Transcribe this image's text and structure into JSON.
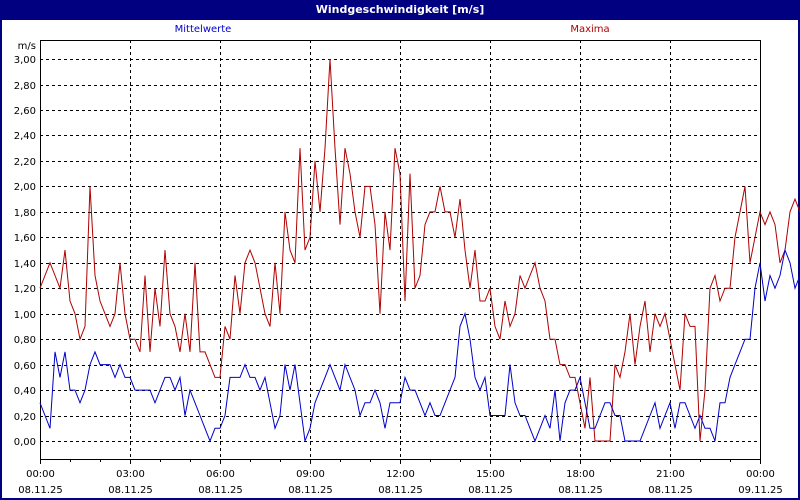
{
  "window": {
    "title": "Windgeschwindigkeit [m/s]"
  },
  "legend": {
    "mean_label": "Mittelwerte",
    "max_label": "Maxima"
  },
  "colors": {
    "title_bg": "#000080",
    "mean": "#0000cc",
    "max": "#b00000",
    "grid": "#000000"
  },
  "chart_data": {
    "type": "line",
    "title": "Windgeschwindigkeit [m/s]",
    "ylabel": "m/s",
    "xlabel": "",
    "ylim": [
      -0.14,
      3.14
    ],
    "grid": true,
    "legend_position": "top",
    "y_ticks": [
      "0,00",
      "0,20",
      "0,40",
      "0,60",
      "0,80",
      "1,00",
      "1,20",
      "1,40",
      "1,60",
      "1,80",
      "2,00",
      "2,20",
      "2,40",
      "2,60",
      "2,80",
      "3,00"
    ],
    "x_ticks": [
      {
        "time": "00:00",
        "date": "08.11.25"
      },
      {
        "time": "03:00",
        "date": "08.11.25"
      },
      {
        "time": "06:00",
        "date": "08.11.25"
      },
      {
        "time": "09:00",
        "date": "08.11.25"
      },
      {
        "time": "12:00",
        "date": "08.11.25"
      },
      {
        "time": "15:00",
        "date": "08.11.25"
      },
      {
        "time": "18:00",
        "date": "08.11.25"
      },
      {
        "time": "21:00",
        "date": "08.11.25"
      },
      {
        "time": "00:00",
        "date": "09.11.25"
      }
    ],
    "x_interval_minutes": 10,
    "series": [
      {
        "name": "Mittelwerte",
        "color": "#0000cc",
        "values": [
          0.3,
          0.2,
          0.1,
          0.7,
          0.5,
          0.7,
          0.4,
          0.4,
          0.3,
          0.4,
          0.6,
          0.7,
          0.6,
          0.6,
          0.6,
          0.5,
          0.6,
          0.5,
          0.5,
          0.4,
          0.4,
          0.4,
          0.4,
          0.3,
          0.4,
          0.5,
          0.5,
          0.4,
          0.5,
          0.2,
          0.4,
          0.3,
          0.2,
          0.1,
          0.0,
          0.1,
          0.1,
          0.2,
          0.5,
          0.5,
          0.5,
          0.6,
          0.5,
          0.5,
          0.4,
          0.5,
          0.3,
          0.1,
          0.2,
          0.6,
          0.4,
          0.6,
          0.3,
          0.0,
          0.1,
          0.3,
          0.4,
          0.5,
          0.6,
          0.5,
          0.4,
          0.6,
          0.5,
          0.4,
          0.2,
          0.3,
          0.3,
          0.4,
          0.3,
          0.1,
          0.3,
          0.3,
          0.3,
          0.5,
          0.4,
          0.4,
          0.3,
          0.2,
          0.3,
          0.2,
          0.2,
          0.3,
          0.4,
          0.5,
          0.9,
          1.0,
          0.8,
          0.5,
          0.4,
          0.5,
          0.2,
          0.2,
          0.2,
          0.2,
          0.6,
          0.3,
          0.2,
          0.2,
          0.1,
          0.0,
          0.1,
          0.2,
          0.1,
          0.4,
          0.0,
          0.3,
          0.4,
          0.4,
          0.5,
          0.3,
          0.1,
          0.1,
          0.2,
          0.3,
          0.3,
          0.2,
          0.2,
          0.0,
          0.0,
          0.0,
          0.0,
          0.1,
          0.2,
          0.3,
          0.1,
          0.2,
          0.3,
          0.1,
          0.3,
          0.3,
          0.2,
          0.1,
          0.2,
          0.1,
          0.1,
          0.0,
          0.3,
          0.3,
          0.5,
          0.6,
          0.7,
          0.8,
          0.8,
          1.2,
          1.4,
          1.1,
          1.3,
          1.2,
          1.3,
          1.5,
          1.4,
          1.2,
          1.3,
          1.4,
          1.4,
          1.5
        ]
      },
      {
        "name": "Maxima",
        "color": "#b00000",
        "values": [
          1.2,
          1.3,
          1.4,
          1.3,
          1.2,
          1.5,
          1.1,
          1.0,
          0.8,
          0.9,
          2.0,
          1.3,
          1.1,
          1.0,
          0.9,
          1.0,
          1.4,
          1.0,
          0.8,
          0.8,
          0.7,
          1.3,
          0.7,
          1.2,
          0.9,
          1.5,
          1.0,
          0.9,
          0.7,
          1.0,
          0.7,
          1.4,
          0.7,
          0.7,
          0.6,
          0.5,
          0.5,
          0.9,
          0.8,
          1.3,
          1.0,
          1.4,
          1.5,
          1.4,
          1.2,
          1.0,
          0.9,
          1.4,
          1.0,
          1.8,
          1.5,
          1.4,
          2.3,
          1.5,
          1.6,
          2.2,
          1.8,
          2.3,
          3.0,
          2.3,
          1.7,
          2.3,
          2.1,
          1.8,
          1.6,
          2.0,
          2.0,
          1.7,
          1.0,
          1.8,
          1.5,
          2.3,
          2.1,
          1.1,
          2.1,
          1.2,
          1.3,
          1.7,
          1.8,
          1.8,
          2.0,
          1.8,
          1.8,
          1.6,
          1.9,
          1.5,
          1.2,
          1.5,
          1.1,
          1.1,
          1.2,
          0.9,
          0.8,
          1.1,
          0.9,
          1.0,
          1.3,
          1.2,
          1.3,
          1.4,
          1.2,
          1.1,
          0.8,
          0.8,
          0.6,
          0.6,
          0.5,
          0.5,
          0.3,
          0.1,
          0.5,
          0.0,
          0.0,
          0.0,
          0.0,
          0.6,
          0.5,
          0.7,
          1.0,
          0.6,
          0.9,
          1.1,
          0.7,
          1.0,
          0.9,
          1.0,
          0.8,
          0.6,
          0.4,
          1.0,
          0.9,
          0.9,
          0.0,
          0.4,
          1.2,
          1.3,
          1.1,
          1.2,
          1.2,
          1.6,
          1.8,
          2.0,
          1.4,
          1.6,
          1.8,
          1.7,
          1.8,
          1.7,
          1.4,
          1.5,
          1.8,
          1.9,
          1.8,
          1.9
        ]
      }
    ]
  }
}
